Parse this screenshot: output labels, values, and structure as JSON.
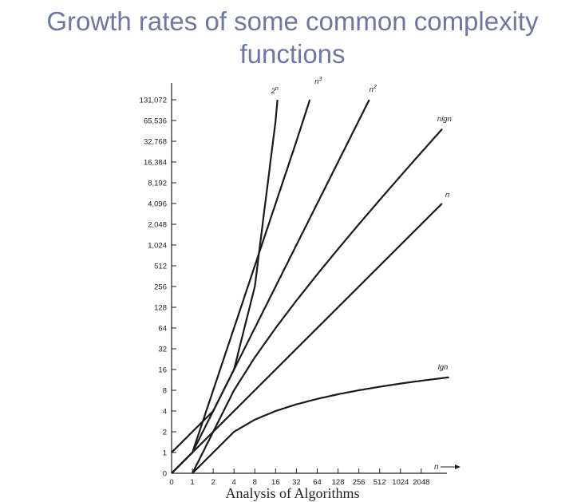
{
  "slide": {
    "title_line1": "Growth rates of some common complexity",
    "title_line2": "functions",
    "footer": "Analysis of Algorithms"
  },
  "chart_data": {
    "type": "line",
    "xlabel": "n",
    "x_tick_labels": [
      "0",
      "1",
      "2",
      "4",
      "8",
      "16",
      "32",
      "64",
      "128",
      "256",
      "512",
      "1024",
      "2048"
    ],
    "x_tick_values": [
      0,
      1,
      2,
      4,
      8,
      16,
      32,
      64,
      128,
      256,
      512,
      1024,
      2048
    ],
    "y_tick_labels": [
      "0",
      "1",
      "2",
      "4",
      "8",
      "16",
      "32",
      "64",
      "128",
      "256",
      "512",
      "1,024",
      "2,048",
      "4,096",
      "8,192",
      "16,384",
      "32,768",
      "65,536",
      "131,072"
    ],
    "y_tick_values": [
      0,
      1,
      2,
      4,
      8,
      16,
      32,
      64,
      128,
      256,
      512,
      1024,
      2048,
      4096,
      8192,
      16384,
      32768,
      65536,
      131072
    ],
    "scale": "log2-like (equal spacing per tick, 0 at origin)",
    "grid": false,
    "legend": "inline labels at line ends",
    "series": [
      {
        "name": "2",
        "sup": "n",
        "points": [
          [
            0,
            1
          ],
          [
            1,
            2
          ],
          [
            2,
            4
          ],
          [
            4,
            16
          ],
          [
            8,
            256
          ],
          [
            16,
            65536
          ],
          [
            17,
            131072
          ]
        ]
      },
      {
        "name": "n",
        "sup": "3",
        "points": [
          [
            0,
            0
          ],
          [
            1,
            1
          ],
          [
            2,
            8
          ],
          [
            4,
            64
          ],
          [
            8,
            512
          ],
          [
            16,
            4096
          ],
          [
            32,
            32768
          ],
          [
            50,
            131072
          ]
        ]
      },
      {
        "name": "n",
        "sup": "2",
        "points": [
          [
            0,
            0
          ],
          [
            1,
            1
          ],
          [
            2,
            4
          ],
          [
            4,
            16
          ],
          [
            8,
            64
          ],
          [
            16,
            256
          ],
          [
            32,
            1024
          ],
          [
            64,
            4096
          ],
          [
            128,
            16384
          ],
          [
            256,
            65536
          ],
          [
            362,
            131072
          ]
        ]
      },
      {
        "name": "nlgn",
        "sup": "",
        "points": [
          [
            1,
            0
          ],
          [
            2,
            2
          ],
          [
            4,
            8
          ],
          [
            8,
            24
          ],
          [
            16,
            64
          ],
          [
            32,
            160
          ],
          [
            64,
            384
          ],
          [
            128,
            896
          ],
          [
            256,
            2048
          ],
          [
            512,
            4608
          ],
          [
            1024,
            10240
          ],
          [
            2048,
            22528
          ],
          [
            4096,
            49152
          ]
        ]
      },
      {
        "name": "n",
        "sup": "",
        "points": [
          [
            0,
            0
          ],
          [
            1,
            1
          ],
          [
            2,
            2
          ],
          [
            4,
            4
          ],
          [
            8,
            8
          ],
          [
            16,
            16
          ],
          [
            32,
            32
          ],
          [
            64,
            64
          ],
          [
            128,
            128
          ],
          [
            256,
            256
          ],
          [
            512,
            512
          ],
          [
            1024,
            1024
          ],
          [
            2048,
            2048
          ],
          [
            4096,
            4096
          ]
        ]
      },
      {
        "name": "lgn",
        "sup": "",
        "points": [
          [
            1,
            0
          ],
          [
            2,
            1
          ],
          [
            4,
            2
          ],
          [
            8,
            3
          ],
          [
            16,
            4
          ],
          [
            32,
            5
          ],
          [
            64,
            6
          ],
          [
            128,
            7
          ],
          [
            256,
            8
          ],
          [
            512,
            9
          ],
          [
            1024,
            10
          ],
          [
            2048,
            11
          ],
          [
            4096,
            12
          ],
          [
            8192,
            13
          ]
        ]
      }
    ]
  }
}
